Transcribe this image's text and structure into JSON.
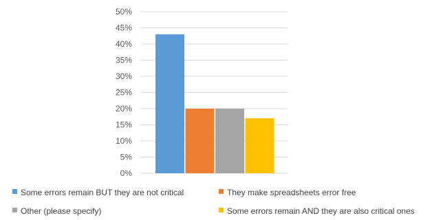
{
  "chart_data": {
    "type": "bar",
    "title": "",
    "xlabel": "",
    "ylabel": "",
    "ylim": [
      0,
      50
    ],
    "yticks": [
      "0%",
      "5%",
      "10%",
      "15%",
      "20%",
      "25%",
      "30%",
      "35%",
      "40%",
      "45%",
      "50%"
    ],
    "grid": true,
    "legend_position": "bottom",
    "series": [
      {
        "name": "Some errors remain BUT they are not critical",
        "value": 43,
        "color": "#5b9bd5"
      },
      {
        "name": "They make spreadsheets error free",
        "value": 20,
        "color": "#ed7d31"
      },
      {
        "name": "Other (please specify)",
        "value": 20,
        "color": "#a5a5a5"
      },
      {
        "name": "Some errors remain AND they are also critical ones",
        "value": 17,
        "color": "#ffc000"
      }
    ]
  }
}
